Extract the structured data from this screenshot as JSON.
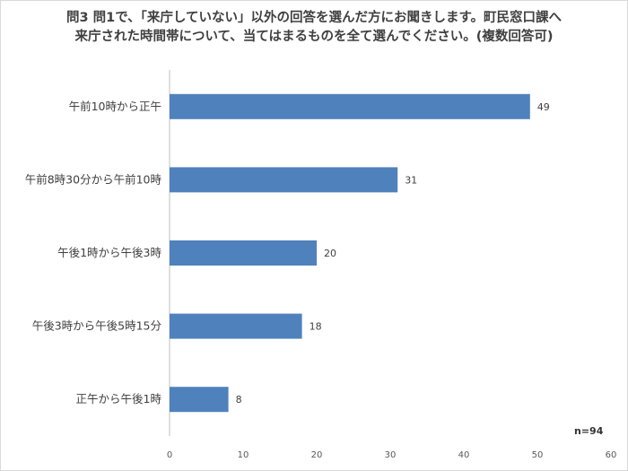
{
  "chart_data": {
    "type": "bar",
    "orientation": "horizontal",
    "title": "問3 問1で、「来庁していない」以外の回答を選んだ方にお聞きします。町民窓口課へ来庁された時間帯について、当てはまるものを全て選んでください。(複数回答可)",
    "categories": [
      "午前10時から正午",
      "午前8時30分から午前10時",
      "午後1時から午後3時",
      "午後3時から午後5時15分",
      "正午から午後1時"
    ],
    "values": [
      49,
      31,
      20,
      18,
      8
    ],
    "xlim": [
      0,
      60
    ],
    "xticks": [
      0,
      10,
      20,
      30,
      40,
      50,
      60
    ],
    "grid": false,
    "legend": "none",
    "bar_color": "#4f81bd",
    "annotation": "n=94"
  }
}
